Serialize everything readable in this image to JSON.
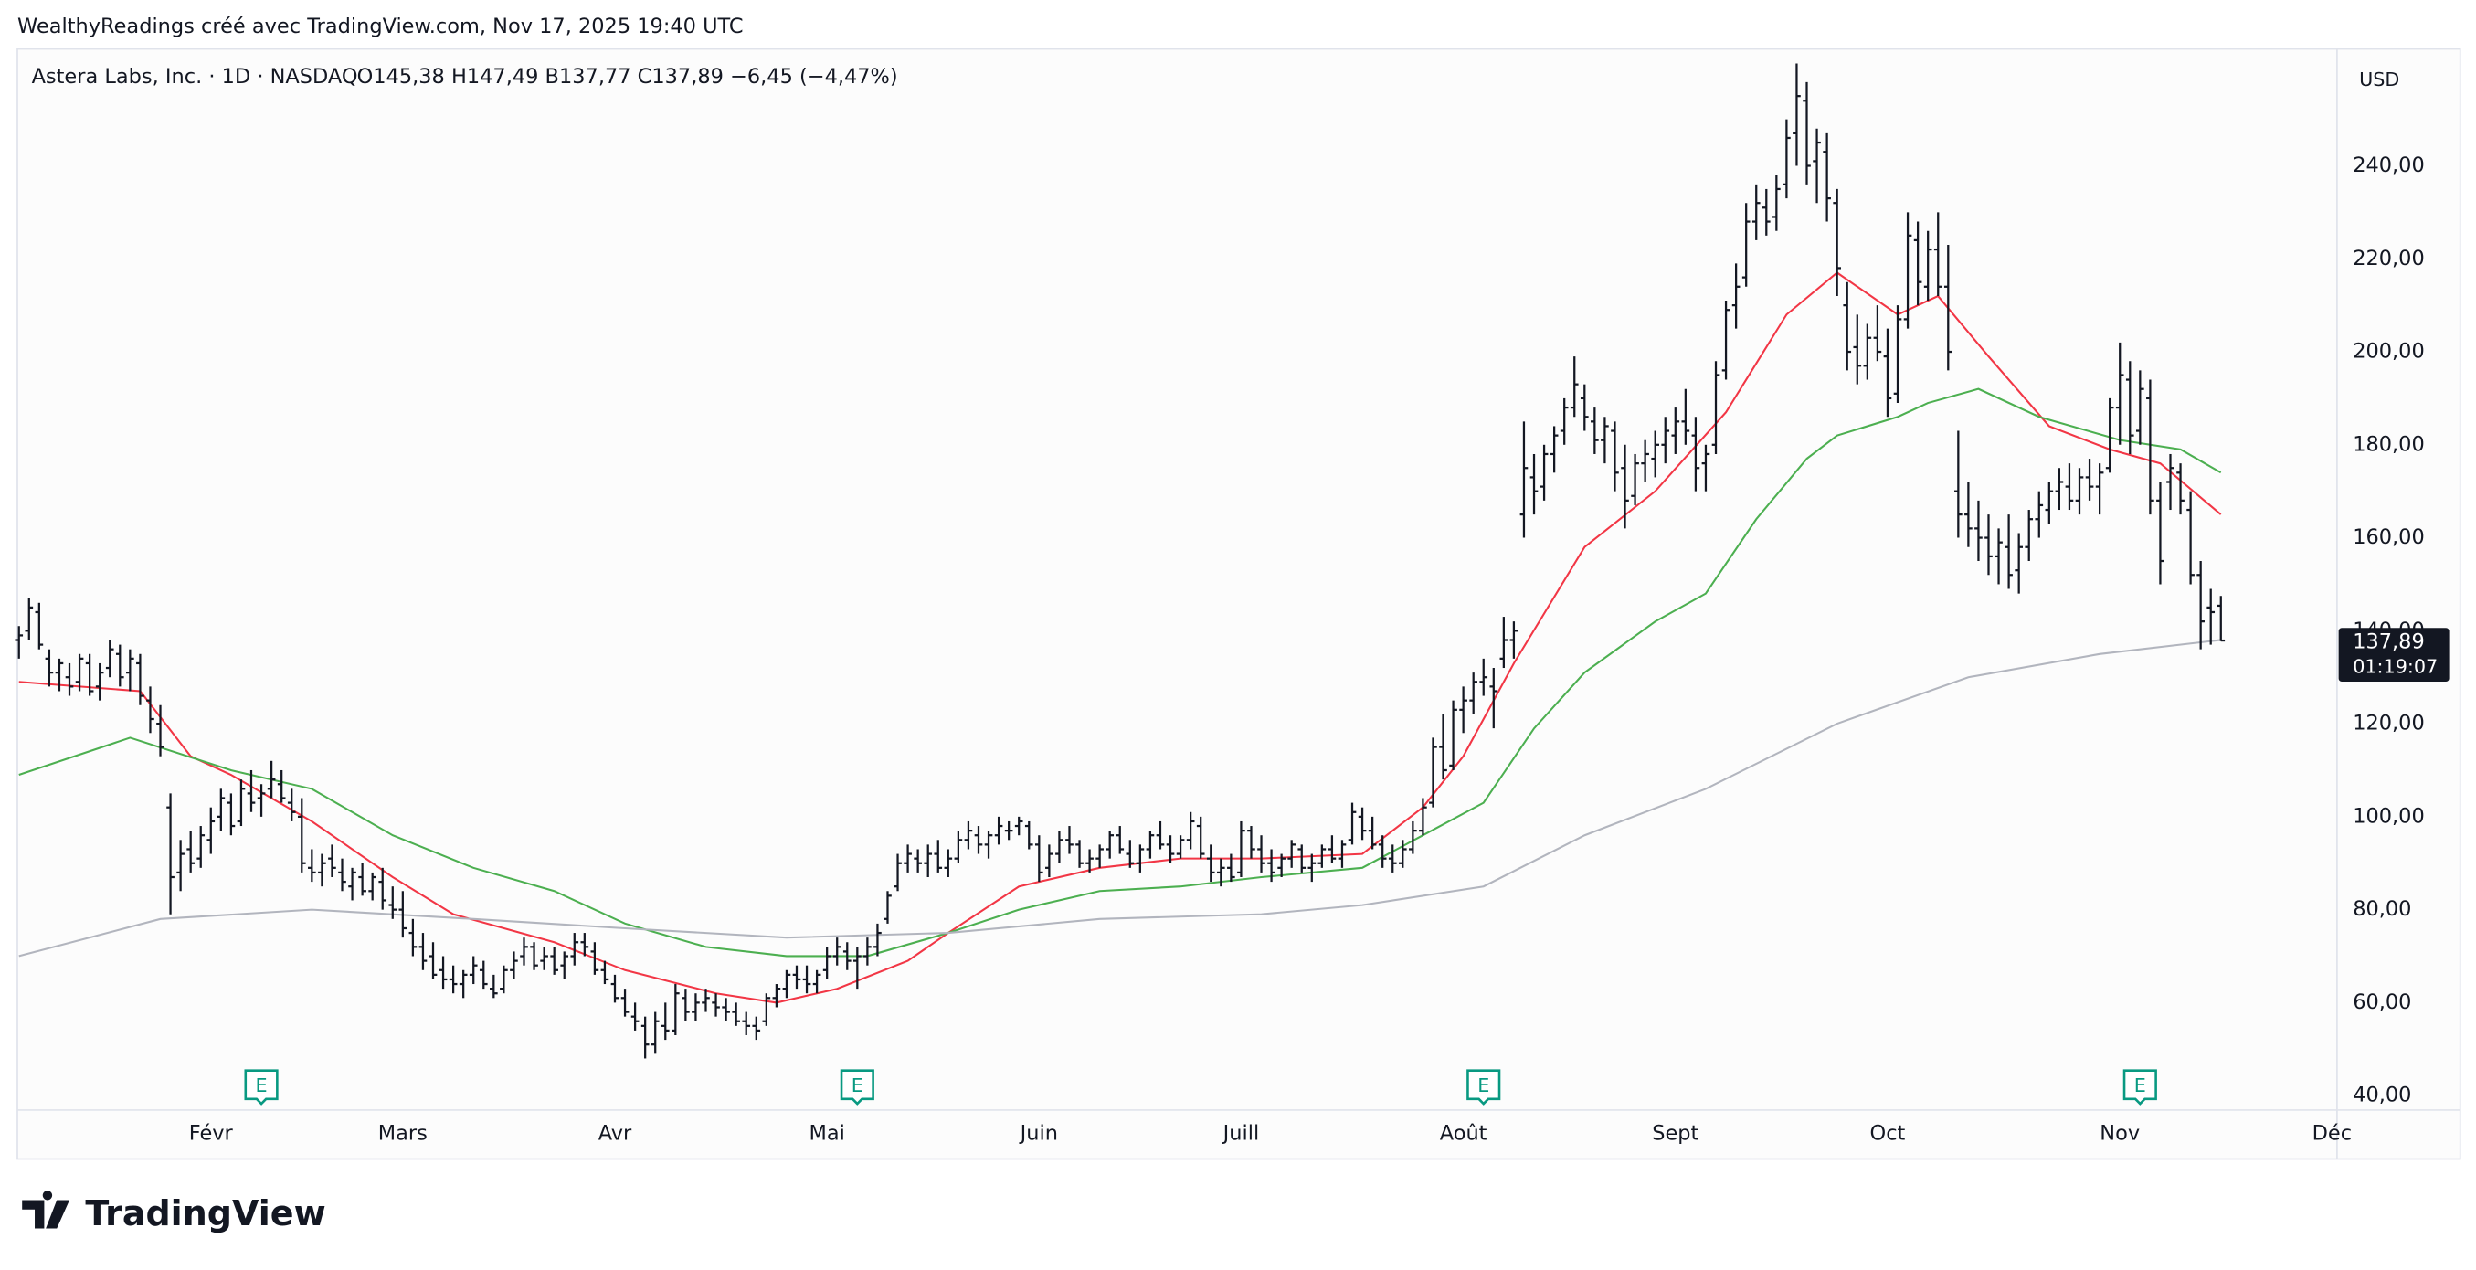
{
  "header": {
    "credit": "WealthyReadings créé avec TradingView.com, Nov 17, 2025 19:40 UTC",
    "logo": "TradingView"
  },
  "chart_data": {
    "type": "ohlc",
    "title": "Astera Labs, Inc. · 1D · NASDAQ",
    "ohlc_label": "O145,38 H147,49 B137,77 C137,89 −6,45 (−4,47%)",
    "currency": "USD",
    "last_price_label": "137,89",
    "countdown": "01:19:07",
    "color": "#131722",
    "xlim": [
      0,
      229.5
    ],
    "xticks": [
      {
        "value": 19,
        "label": "Févr"
      },
      {
        "value": 38,
        "label": "Mars"
      },
      {
        "value": 59,
        "label": "Avr"
      },
      {
        "value": 80,
        "label": "Mai"
      },
      {
        "value": 101,
        "label": "Juin"
      },
      {
        "value": 121,
        "label": "Juill"
      },
      {
        "value": 143,
        "label": "Août"
      },
      {
        "value": 164,
        "label": "Sept"
      },
      {
        "value": 185,
        "label": "Oct"
      },
      {
        "value": 208,
        "label": "Nov"
      },
      {
        "value": 229,
        "label": "Déc"
      }
    ],
    "ylim": [
      36.9,
      264.8
    ],
    "yticks": [
      {
        "value": 40,
        "label": "40,00"
      },
      {
        "value": 60,
        "label": "60,00"
      },
      {
        "value": 80,
        "label": "80,00"
      },
      {
        "value": 100,
        "label": "100,00"
      },
      {
        "value": 120,
        "label": "120,00"
      },
      {
        "value": 140,
        "label": "140,00"
      },
      {
        "value": 160,
        "label": "160,00"
      },
      {
        "value": 180,
        "label": "180,00"
      },
      {
        "value": 200,
        "label": "200,00"
      },
      {
        "value": 220,
        "label": "220,00"
      },
      {
        "value": 240,
        "label": "240,00"
      }
    ],
    "grid": false,
    "events": [
      {
        "x": 24,
        "label": "E"
      },
      {
        "x": 83,
        "label": "E"
      },
      {
        "x": 145,
        "label": "E"
      },
      {
        "x": 210,
        "label": "E"
      }
    ],
    "ohlc": [
      [
        138,
        141,
        134,
        139
      ],
      [
        140,
        147,
        138,
        145
      ],
      [
        144,
        146,
        136,
        137
      ],
      [
        134,
        136,
        128,
        131
      ],
      [
        131,
        134,
        127,
        133
      ],
      [
        130,
        133,
        126,
        128
      ],
      [
        129,
        135,
        127,
        134
      ],
      [
        133,
        135,
        126,
        127
      ],
      [
        128,
        133,
        125,
        131
      ],
      [
        132,
        138,
        130,
        136
      ],
      [
        135,
        137,
        128,
        130
      ],
      [
        131,
        136,
        127,
        134
      ],
      [
        133,
        135,
        124,
        126
      ],
      [
        125,
        128,
        118,
        121
      ],
      [
        120,
        124,
        113,
        115
      ],
      [
        102,
        105,
        79,
        87
      ],
      [
        88,
        95,
        84,
        92
      ],
      [
        93,
        97,
        88,
        90
      ],
      [
        91,
        98,
        89,
        96
      ],
      [
        95,
        102,
        92,
        99
      ],
      [
        100,
        106,
        97,
        104
      ],
      [
        103,
        105,
        96,
        98
      ],
      [
        99,
        108,
        98,
        106
      ],
      [
        105,
        110,
        101,
        103
      ],
      [
        104,
        107,
        100,
        105
      ],
      [
        106,
        112,
        104,
        108
      ],
      [
        107,
        110,
        103,
        104
      ],
      [
        103,
        106,
        99,
        101
      ],
      [
        100,
        104,
        88,
        90
      ],
      [
        89,
        93,
        86,
        88
      ],
      [
        88,
        92,
        85,
        90
      ],
      [
        91,
        94,
        87,
        89
      ],
      [
        88,
        91,
        84,
        86
      ],
      [
        85,
        89,
        82,
        88
      ],
      [
        87,
        90,
        83,
        84
      ],
      [
        84,
        88,
        82,
        87
      ],
      [
        86,
        89,
        80,
        82
      ],
      [
        81,
        85,
        78,
        80
      ],
      [
        80,
        84,
        74,
        76
      ],
      [
        75,
        78,
        70,
        72
      ],
      [
        72,
        75,
        67,
        69
      ],
      [
        70,
        73,
        65,
        66
      ],
      [
        67,
        70,
        63,
        65
      ],
      [
        65,
        68,
        62,
        64
      ],
      [
        64,
        67,
        61,
        66
      ],
      [
        66,
        70,
        64,
        68
      ],
      [
        67,
        69,
        63,
        64
      ],
      [
        63,
        66,
        61,
        62
      ],
      [
        63,
        68,
        62,
        67
      ],
      [
        67,
        71,
        65,
        69
      ],
      [
        70,
        74,
        68,
        72
      ],
      [
        72,
        73,
        67,
        68
      ],
      [
        69,
        72,
        67,
        70
      ],
      [
        70,
        72,
        66,
        67
      ],
      [
        68,
        71,
        65,
        70
      ],
      [
        70,
        75,
        68,
        73
      ],
      [
        73,
        75,
        70,
        72
      ],
      [
        71,
        73,
        66,
        67
      ],
      [
        67,
        69,
        64,
        65
      ],
      [
        64,
        66,
        60,
        61
      ],
      [
        61,
        63,
        57,
        58
      ],
      [
        57,
        60,
        54,
        56
      ],
      [
        55,
        57,
        48,
        51
      ],
      [
        51,
        58,
        49,
        56
      ],
      [
        55,
        60,
        52,
        54
      ],
      [
        54,
        64,
        53,
        62
      ],
      [
        61,
        63,
        56,
        58
      ],
      [
        58,
        62,
        56,
        60
      ],
      [
        60,
        63,
        58,
        61
      ],
      [
        60,
        62,
        57,
        59
      ],
      [
        59,
        61,
        56,
        58
      ],
      [
        58,
        60,
        55,
        56
      ],
      [
        56,
        58,
        53,
        55
      ],
      [
        55,
        57,
        52,
        54
      ],
      [
        56,
        62,
        55,
        61
      ],
      [
        61,
        64,
        59,
        63
      ],
      [
        63,
        67,
        61,
        66
      ],
      [
        66,
        68,
        63,
        65
      ],
      [
        65,
        68,
        62,
        64
      ],
      [
        64,
        67,
        62,
        66
      ],
      [
        67,
        72,
        65,
        70
      ],
      [
        70,
        74,
        68,
        72
      ],
      [
        71,
        73,
        67,
        69
      ],
      [
        69,
        72,
        63,
        70
      ],
      [
        70,
        74,
        68,
        72
      ],
      [
        72,
        77,
        70,
        75
      ],
      [
        78,
        84,
        77,
        83
      ],
      [
        85,
        92,
        84,
        90
      ],
      [
        90,
        94,
        88,
        92
      ],
      [
        91,
        93,
        88,
        90
      ],
      [
        90,
        94,
        87,
        92
      ],
      [
        92,
        95,
        88,
        89
      ],
      [
        89,
        93,
        87,
        91
      ],
      [
        91,
        97,
        90,
        95
      ],
      [
        95,
        99,
        93,
        97
      ],
      [
        96,
        98,
        92,
        94
      ],
      [
        94,
        97,
        91,
        96
      ],
      [
        96,
        100,
        94,
        98
      ],
      [
        97,
        99,
        95,
        97
      ],
      [
        98,
        100,
        96,
        99
      ],
      [
        98,
        99,
        93,
        94
      ],
      [
        94,
        96,
        86,
        88
      ],
      [
        89,
        94,
        87,
        92
      ],
      [
        92,
        97,
        90,
        95
      ],
      [
        95,
        98,
        92,
        94
      ],
      [
        94,
        95,
        89,
        90
      ],
      [
        90,
        93,
        88,
        91
      ],
      [
        91,
        94,
        89,
        93
      ],
      [
        93,
        97,
        91,
        96
      ],
      [
        96,
        98,
        92,
        93
      ],
      [
        92,
        95,
        89,
        90
      ],
      [
        90,
        94,
        88,
        93
      ],
      [
        93,
        97,
        91,
        96
      ],
      [
        96,
        99,
        93,
        94
      ],
      [
        94,
        96,
        90,
        92
      ],
      [
        92,
        96,
        91,
        95
      ],
      [
        95,
        101,
        93,
        99
      ],
      [
        98,
        100,
        91,
        92
      ],
      [
        91,
        94,
        86,
        88
      ],
      [
        88,
        91,
        85,
        89
      ],
      [
        89,
        92,
        86,
        87
      ],
      [
        88,
        99,
        87,
        97
      ],
      [
        97,
        98,
        91,
        93
      ],
      [
        93,
        96,
        88,
        90
      ],
      [
        90,
        93,
        86,
        88
      ],
      [
        89,
        92,
        87,
        91
      ],
      [
        91,
        95,
        89,
        94
      ],
      [
        93,
        94,
        88,
        89
      ],
      [
        89,
        92,
        86,
        90
      ],
      [
        90,
        94,
        89,
        93
      ],
      [
        93,
        96,
        90,
        91
      ],
      [
        91,
        95,
        89,
        94
      ],
      [
        95,
        103,
        94,
        101
      ],
      [
        100,
        102,
        95,
        97
      ],
      [
        97,
        100,
        93,
        94
      ],
      [
        94,
        96,
        89,
        91
      ],
      [
        91,
        94,
        88,
        90
      ],
      [
        90,
        95,
        89,
        93
      ],
      [
        93,
        99,
        92,
        97
      ],
      [
        97,
        104,
        96,
        102
      ],
      [
        103,
        117,
        102,
        115
      ],
      [
        115,
        122,
        108,
        110
      ],
      [
        111,
        125,
        110,
        123
      ],
      [
        123,
        128,
        118,
        125
      ],
      [
        125,
        131,
        122,
        129
      ],
      [
        129,
        134,
        126,
        130
      ],
      [
        128,
        132,
        119,
        127
      ],
      [
        134,
        143,
        132,
        138
      ],
      [
        138,
        142,
        134,
        140
      ],
      [
        165,
        185,
        160,
        175
      ],
      [
        173,
        178,
        165,
        170
      ],
      [
        171,
        180,
        168,
        178
      ],
      [
        178,
        184,
        174,
        182
      ],
      [
        183,
        190,
        180,
        188
      ],
      [
        188,
        199,
        186,
        193
      ],
      [
        190,
        193,
        183,
        186
      ],
      [
        185,
        188,
        178,
        181
      ],
      [
        181,
        186,
        176,
        184
      ],
      [
        183,
        185,
        170,
        174
      ],
      [
        175,
        180,
        162,
        168
      ],
      [
        169,
        178,
        167,
        176
      ],
      [
        176,
        181,
        172,
        178
      ],
      [
        177,
        183,
        173,
        180
      ],
      [
        180,
        186,
        176,
        183
      ],
      [
        182,
        188,
        178,
        185
      ],
      [
        185,
        192,
        180,
        183
      ],
      [
        182,
        186,
        170,
        175
      ],
      [
        176,
        180,
        170,
        178
      ],
      [
        180,
        198,
        178,
        195
      ],
      [
        196,
        211,
        194,
        209
      ],
      [
        210,
        219,
        205,
        214
      ],
      [
        216,
        232,
        214,
        228
      ],
      [
        228,
        236,
        224,
        232
      ],
      [
        231,
        235,
        225,
        228
      ],
      [
        229,
        238,
        226,
        235
      ],
      [
        236,
        250,
        233,
        246
      ],
      [
        247,
        262,
        240,
        255
      ],
      [
        254,
        258,
        236,
        240
      ],
      [
        241,
        248,
        232,
        245
      ],
      [
        243,
        247,
        228,
        233
      ],
      [
        232,
        235,
        212,
        218
      ],
      [
        210,
        215,
        196,
        200
      ],
      [
        201,
        208,
        193,
        197
      ],
      [
        197,
        206,
        194,
        203
      ],
      [
        203,
        210,
        198,
        200
      ],
      [
        199,
        205,
        186,
        190
      ],
      [
        191,
        210,
        189,
        207
      ],
      [
        207,
        230,
        205,
        225
      ],
      [
        224,
        228,
        210,
        215
      ],
      [
        214,
        226,
        211,
        222
      ],
      [
        222,
        230,
        212,
        214
      ],
      [
        214,
        223,
        196,
        200
      ],
      [
        170,
        183,
        160,
        165
      ],
      [
        165,
        172,
        158,
        162
      ],
      [
        162,
        168,
        155,
        160
      ],
      [
        160,
        165,
        152,
        156
      ],
      [
        156,
        162,
        150,
        159
      ],
      [
        158,
        165,
        149,
        152
      ],
      [
        153,
        161,
        148,
        158
      ],
      [
        158,
        166,
        155,
        164
      ],
      [
        164,
        170,
        160,
        167
      ],
      [
        166,
        172,
        163,
        170
      ],
      [
        170,
        175,
        166,
        172
      ],
      [
        171,
        176,
        166,
        168
      ],
      [
        168,
        175,
        165,
        173
      ],
      [
        173,
        177,
        168,
        171
      ],
      [
        171,
        176,
        165,
        174
      ],
      [
        175,
        190,
        174,
        188
      ],
      [
        188,
        202,
        180,
        195
      ],
      [
        194,
        198,
        178,
        182
      ],
      [
        183,
        196,
        180,
        192
      ],
      [
        190,
        194,
        165,
        168
      ],
      [
        168,
        172,
        150,
        155
      ],
      [
        172,
        178,
        166,
        175
      ],
      [
        174,
        176,
        165,
        168
      ],
      [
        166,
        170,
        150,
        152
      ],
      [
        152,
        155,
        136,
        142
      ],
      [
        145,
        149,
        137,
        144
      ],
      [
        145.38,
        147.49,
        137.77,
        137.89
      ]
    ],
    "ma_lines": [
      {
        "color": "#f23645",
        "x": [
          0,
          12,
          17,
          21,
          29,
          37,
          43,
          53,
          60,
          69,
          75,
          81,
          88,
          92,
          99,
          107,
          115,
          123,
          133,
          139,
          143,
          148,
          155,
          162,
          169,
          175,
          180,
          186,
          190,
          195,
          201,
          207,
          212,
          218
        ],
        "values": [
          129,
          127,
          113,
          109,
          99,
          87,
          79,
          73,
          67,
          62,
          60,
          63,
          69,
          75,
          85,
          89,
          91,
          91,
          92,
          102,
          113,
          133,
          158,
          170,
          187,
          208,
          217,
          208,
          212,
          199,
          184,
          179,
          176,
          165
        ]
      },
      {
        "color": "#4caf50",
        "x": [
          0,
          11,
          21,
          29,
          37,
          45,
          53,
          60,
          68,
          76,
          84,
          92,
          99,
          107,
          115,
          123,
          133,
          139,
          145,
          150,
          155,
          162,
          167,
          172,
          177,
          180,
          186,
          189,
          194,
          200,
          208,
          214,
          218
        ],
        "values": [
          109,
          117,
          110,
          106,
          96,
          89,
          84,
          77,
          72,
          70,
          70,
          75,
          80,
          84,
          85,
          87,
          89,
          96,
          103,
          119,
          131,
          142,
          148,
          164,
          177,
          182,
          186,
          189,
          192,
          186,
          181,
          179,
          174
        ]
      },
      {
        "color": "#b2b5be",
        "x": [
          0,
          14,
          29,
          45,
          60,
          76,
          92,
          107,
          123,
          133,
          145,
          155,
          167,
          180,
          193,
          206,
          218
        ],
        "values": [
          70,
          78,
          80,
          78,
          76,
          74,
          75,
          78,
          79,
          81,
          85,
          96,
          106,
          120,
          130,
          135,
          138
        ]
      }
    ]
  }
}
